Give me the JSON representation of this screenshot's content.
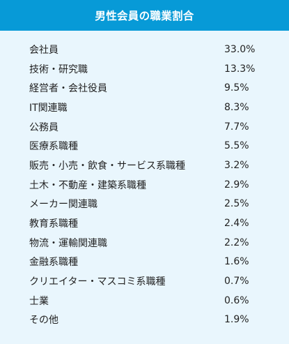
{
  "title": "男性会員の職業割合",
  "colors": {
    "header_bg": "#079ad7",
    "header_text": "#ffffff",
    "panel_bg": "#e9f6fd",
    "text": "#222222"
  },
  "rows": [
    {
      "label": "会社員",
      "value": "33.0%"
    },
    {
      "label": "技術・研究職",
      "value": "13.3%"
    },
    {
      "label": "経営者・会社役員",
      "value": "9.5%"
    },
    {
      "label": "IT関連職",
      "value": "8.3%"
    },
    {
      "label": "公務員",
      "value": "7.7%"
    },
    {
      "label": "医療系職種",
      "value": "5.5%"
    },
    {
      "label": "販売・小売・飲食・サービス系職種",
      "value": "3.2%"
    },
    {
      "label": "土木・不動産・建築系職種",
      "value": "2.9%"
    },
    {
      "label": "メーカー関連職",
      "value": "2.5%"
    },
    {
      "label": "教育系職種",
      "value": "2.4%"
    },
    {
      "label": "物流・運輸関連職",
      "value": "2.2%"
    },
    {
      "label": "金融系職種",
      "value": "1.6%"
    },
    {
      "label": "クリエイター・マスコミ系職種",
      "value": "0.7%"
    },
    {
      "label": "士業",
      "value": "0.6%"
    },
    {
      "label": "その他",
      "value": "1.9%"
    }
  ]
}
